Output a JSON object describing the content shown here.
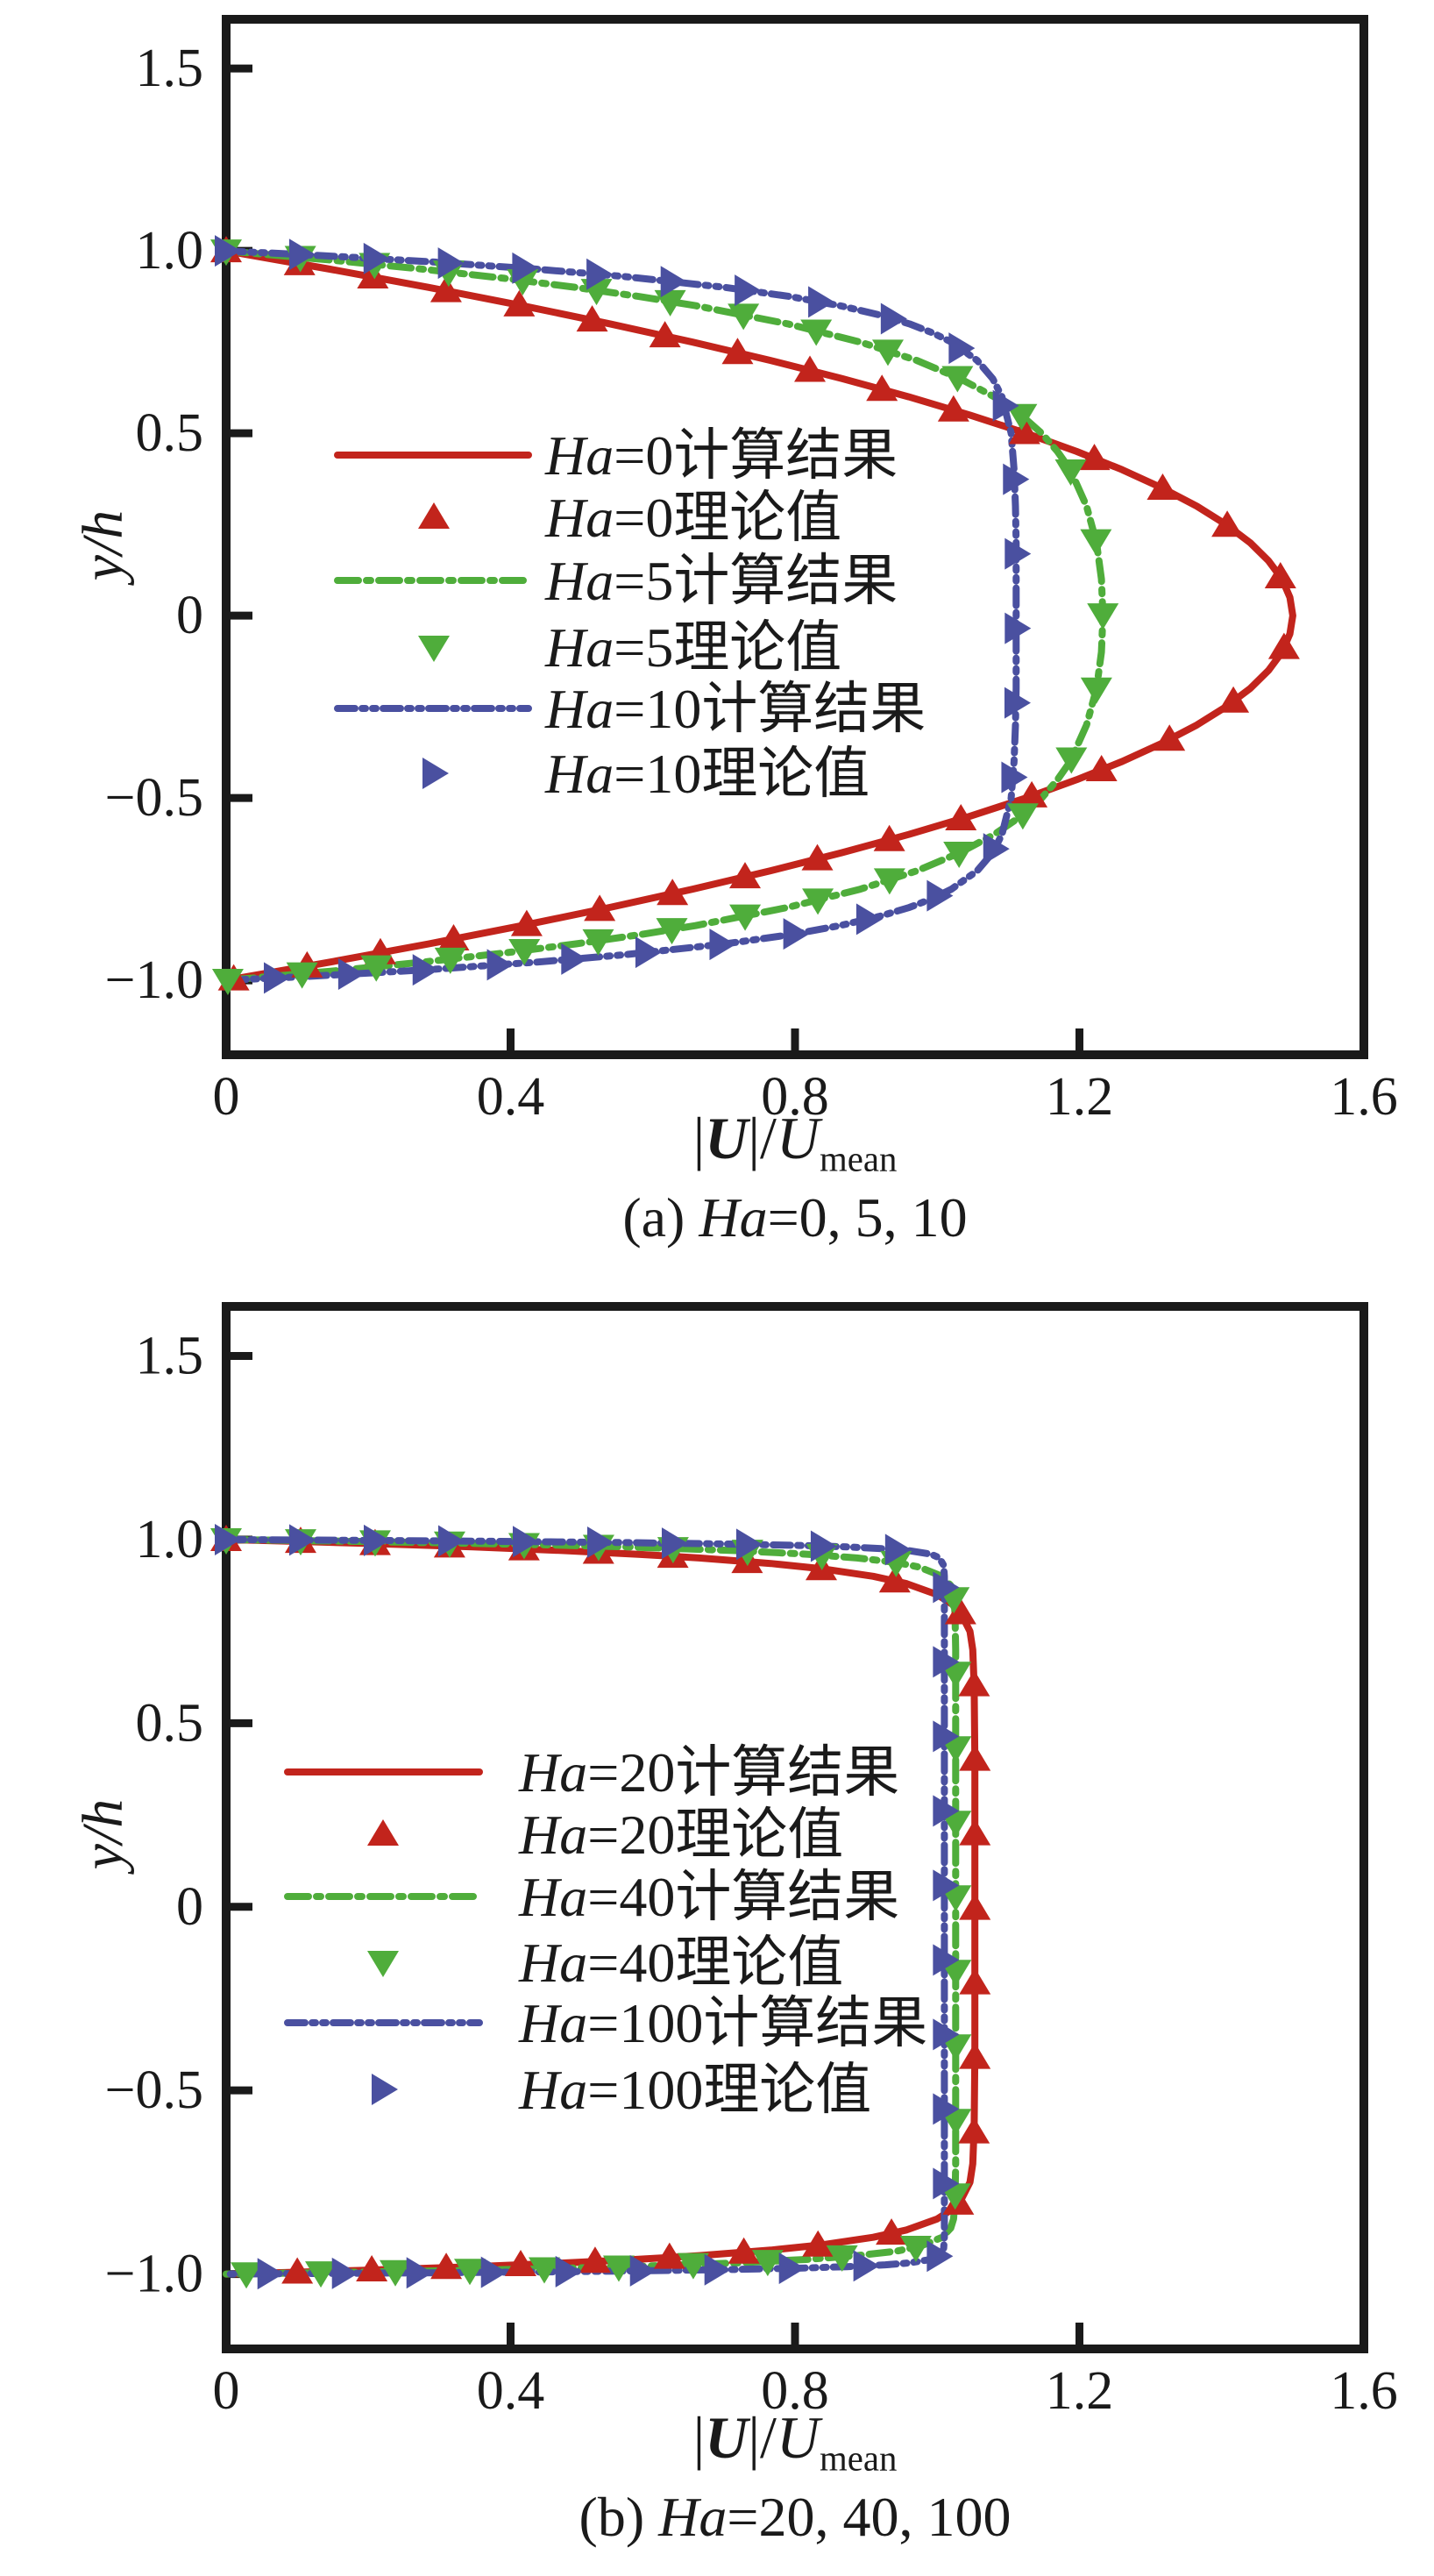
{
  "page": {
    "background": "#ffffff"
  },
  "colors": {
    "axis": "#1a1a1a",
    "red": "#c2241c",
    "green": "#4fad3b",
    "blue": "#4a50a0"
  },
  "chart_data": [
    {
      "id": "a",
      "type": "line",
      "caption_parts": {
        "prefix": "(a) ",
        "italic": "Ha",
        "rest": "=0, 5, 10"
      },
      "xlabel_parts": {
        "p1": "|",
        "p2": "U",
        "p3": "|/",
        "p4": "U",
        "p5": "mean"
      },
      "ylabel": "y/h",
      "xlim": [
        0,
        1.6
      ],
      "ylim": [
        -1.2,
        1.64
      ],
      "grid": false,
      "legend_position": "inside-center-left",
      "xticks": {
        "values": [
          0,
          0.4,
          0.8,
          1.2,
          1.6
        ],
        "labels": [
          "0",
          "0.4",
          "0.8",
          "1.2",
          "1.6"
        ]
      },
      "yticks": {
        "values": [
          1.5,
          1.0,
          0.5,
          0,
          -0.5,
          -1.0
        ],
        "labels": [
          "1.5",
          "1.0",
          "0.5",
          "0",
          "−0.5",
          "−1.0"
        ]
      },
      "symmetric_about_y0": true,
      "series": [
        {
          "ha": 0,
          "color": "red",
          "line_style": "solid",
          "marker": "triangle-up",
          "computed_label": {
            "italic": "Ha",
            "rest": "=0计算结果"
          },
          "theory_label": {
            "italic": "Ha",
            "rest": "=0理论值"
          },
          "peak_u": 1.5,
          "points_half_y_u": [
            [
              1,
              0
            ],
            [
              0.95,
              0.146
            ],
            [
              0.9,
              0.285
            ],
            [
              0.85,
              0.416
            ],
            [
              0.8,
              0.54
            ],
            [
              0.75,
              0.656
            ],
            [
              0.7,
              0.765
            ],
            [
              0.65,
              0.866
            ],
            [
              0.6,
              0.96
            ],
            [
              0.55,
              1.046
            ],
            [
              0.5,
              1.125
            ],
            [
              0.45,
              1.196
            ],
            [
              0.4,
              1.26
            ],
            [
              0.35,
              1.316
            ],
            [
              0.3,
              1.365
            ],
            [
              0.25,
              1.406
            ],
            [
              0.2,
              1.44
            ],
            [
              0.15,
              1.466
            ],
            [
              0.1,
              1.485
            ],
            [
              0.05,
              1.496
            ],
            [
              0,
              1.5
            ]
          ]
        },
        {
          "ha": 5,
          "color": "green",
          "line_style": "dashdot",
          "marker": "triangle-down",
          "computed_label": {
            "italic": "Ha",
            "rest": "=5计算结果"
          },
          "theory_label": {
            "italic": "Ha",
            "rest": "=5理论值"
          },
          "peak_u": 1.233,
          "points_half_y_u": [
            [
              1,
              0
            ],
            [
              0.975,
              0.147
            ],
            [
              0.95,
              0.277
            ],
            [
              0.925,
              0.391
            ],
            [
              0.9,
              0.492
            ],
            [
              0.875,
              0.581
            ],
            [
              0.85,
              0.66
            ],
            [
              0.8,
              0.79
            ],
            [
              0.75,
              0.892
            ],
            [
              0.7,
              0.971
            ],
            [
              0.65,
              1.032
            ],
            [
              0.6,
              1.08
            ],
            [
              0.55,
              1.118
            ],
            [
              0.5,
              1.147
            ],
            [
              0.45,
              1.169
            ],
            [
              0.4,
              1.187
            ],
            [
              0.3,
              1.21
            ],
            [
              0.2,
              1.224
            ],
            [
              0.1,
              1.231
            ],
            [
              0,
              1.233
            ]
          ]
        },
        {
          "ha": 10,
          "color": "blue",
          "line_style": "dashdotdot",
          "marker": "triangle-right",
          "computed_label": {
            "italic": "Ha",
            "rest": "=10计算结果"
          },
          "theory_label": {
            "italic": "Ha",
            "rest": "=10理论值"
          },
          "peak_u": 1.111,
          "points_half_y_u": [
            [
              1,
              0
            ],
            [
              0.99,
              0.106
            ],
            [
              0.98,
              0.201
            ],
            [
              0.97,
              0.288
            ],
            [
              0.95,
              0.437
            ],
            [
              0.93,
              0.559
            ],
            [
              0.9,
              0.702
            ],
            [
              0.875,
              0.793
            ],
            [
              0.85,
              0.863
            ],
            [
              0.825,
              0.918
            ],
            [
              0.8,
              0.961
            ],
            [
              0.775,
              0.994
            ],
            [
              0.75,
              1.02
            ],
            [
              0.7,
              1.056
            ],
            [
              0.65,
              1.078
            ],
            [
              0.6,
              1.091
            ],
            [
              0.5,
              1.104
            ],
            [
              0.4,
              1.108
            ],
            [
              0.3,
              1.11
            ],
            [
              0.2,
              1.111
            ],
            [
              0,
              1.111
            ]
          ]
        }
      ]
    },
    {
      "id": "b",
      "type": "line",
      "caption_parts": {
        "prefix": "(b) ",
        "italic": "Ha",
        "rest": "=20, 40, 100"
      },
      "xlabel_parts": {
        "p1": "|",
        "p2": "U",
        "p3": "|/",
        "p4": "U",
        "p5": "mean"
      },
      "ylabel": "y/h",
      "xlim": [
        0,
        1.6
      ],
      "ylim": [
        -1.2,
        1.64
      ],
      "grid": false,
      "legend_position": "inside-center-left",
      "xticks": {
        "values": [
          0,
          0.4,
          0.8,
          1.2,
          1.6
        ],
        "labels": [
          "0",
          "0.4",
          "0.8",
          "1.2",
          "1.6"
        ]
      },
      "yticks": {
        "values": [
          1.5,
          1.0,
          0.5,
          0,
          -0.5,
          -1.0
        ],
        "labels": [
          "1.5",
          "1.0",
          "0.5",
          "0",
          "−0.5",
          "−1.0"
        ]
      },
      "symmetric_about_y0": true,
      "series": [
        {
          "ha": 20,
          "color": "red",
          "line_style": "solid",
          "marker": "triangle-up",
          "computed_label": {
            "italic": "Ha",
            "rest": "=20计算结果"
          },
          "theory_label": {
            "italic": "Ha",
            "rest": "=20理论值"
          },
          "peak_u": 1.053,
          "points_half_y_u": [
            [
              1,
              0
            ],
            [
              0.995,
              0.1
            ],
            [
              0.99,
              0.191
            ],
            [
              0.985,
              0.273
            ],
            [
              0.98,
              0.347
            ],
            [
              0.97,
              0.475
            ],
            [
              0.96,
              0.58
            ],
            [
              0.95,
              0.665
            ],
            [
              0.935,
              0.766
            ],
            [
              0.92,
              0.84
            ],
            [
              0.9,
              0.91
            ],
            [
              0.88,
              0.957
            ],
            [
              0.85,
              1.0
            ],
            [
              0.82,
              1.024
            ],
            [
              0.8,
              1.033
            ],
            [
              0.75,
              1.046
            ],
            [
              0.7,
              1.05
            ],
            [
              0.6,
              1.052
            ],
            [
              0.4,
              1.053
            ],
            [
              0,
              1.053
            ]
          ]
        },
        {
          "ha": 40,
          "color": "green",
          "line_style": "dashdot",
          "marker": "triangle-down",
          "computed_label": {
            "italic": "Ha",
            "rest": "=40计算结果"
          },
          "theory_label": {
            "italic": "Ha",
            "rest": "=40理论值"
          },
          "peak_u": 1.026,
          "points_half_y_u": [
            [
              1,
              0
            ],
            [
              0.9975,
              0.098
            ],
            [
              0.995,
              0.186
            ],
            [
              0.99,
              0.338
            ],
            [
              0.985,
              0.463
            ],
            [
              0.98,
              0.565
            ],
            [
              0.97,
              0.717
            ],
            [
              0.96,
              0.819
            ],
            [
              0.95,
              0.887
            ],
            [
              0.938,
              0.942
            ],
            [
              0.925,
              0.975
            ],
            [
              0.9,
              1.007
            ],
            [
              0.875,
              1.019
            ],
            [
              0.85,
              1.023
            ],
            [
              0.8,
              1.025
            ],
            [
              0.7,
              1.026
            ],
            [
              0.4,
              1.026
            ],
            [
              0,
              1.026
            ]
          ]
        },
        {
          "ha": 100,
          "color": "blue",
          "line_style": "dashdotdot",
          "marker": "triangle-right",
          "computed_label": {
            "italic": "Ha",
            "rest": "=100计算结果"
          },
          "theory_label": {
            "italic": "Ha",
            "rest": "=100理论值"
          },
          "peak_u": 1.01,
          "points_half_y_u": [
            [
              1,
              0
            ],
            [
              0.999,
              0.096
            ],
            [
              0.998,
              0.183
            ],
            [
              0.996,
              0.333
            ],
            [
              0.994,
              0.456
            ],
            [
              0.992,
              0.556
            ],
            [
              0.988,
              0.706
            ],
            [
              0.984,
              0.806
            ],
            [
              0.98,
              0.873
            ],
            [
              0.975,
              0.927
            ],
            [
              0.97,
              0.96
            ],
            [
              0.96,
              0.992
            ],
            [
              0.95,
              1.003
            ],
            [
              0.93,
              1.009
            ],
            [
              0.9,
              1.01
            ],
            [
              0.7,
              1.01
            ],
            [
              0.4,
              1.01
            ],
            [
              0,
              1.01
            ]
          ]
        }
      ]
    }
  ]
}
